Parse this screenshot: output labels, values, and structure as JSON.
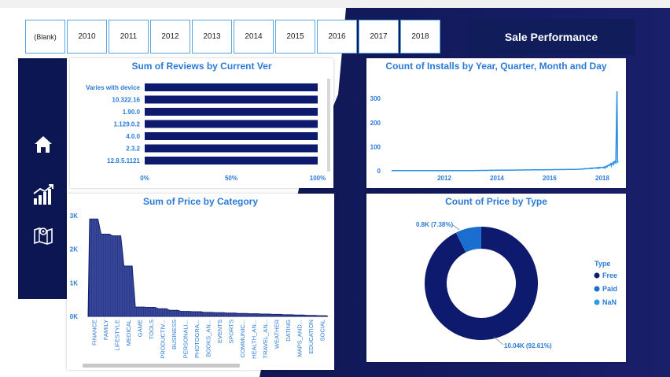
{
  "slicer": {
    "years": [
      "(Blank)",
      "2010",
      "2011",
      "2012",
      "2013",
      "2014",
      "2015",
      "2016",
      "2017",
      "2018"
    ]
  },
  "header": {
    "title": "Sale Performance"
  },
  "nav": {
    "items": [
      "home-icon",
      "analytics-icon",
      "map-icon"
    ]
  },
  "reviews_chart": {
    "title": "Sum of Reviews by Current Ver",
    "categories": [
      "Varies with device",
      "10.322.16",
      "1.90.0",
      "1.129.0.2",
      "4.0.0",
      "2.3.2",
      "12.8.5.1121"
    ],
    "values": [
      100,
      100,
      100,
      100,
      100,
      100,
      100
    ],
    "x_ticks": [
      "0%",
      "50%",
      "100%"
    ],
    "bar_color": "#0d1a6e"
  },
  "installs_chart": {
    "title": "Count of Installs by Year, Quarter, Month and Day",
    "y_ticks": [
      "300",
      "200",
      "100",
      "0"
    ],
    "x_ticks": [
      "2012",
      "2014",
      "2016",
      "2018"
    ],
    "line_color": "#2a8fe6"
  },
  "price_category_chart": {
    "title": "Sum of Price by Category",
    "y_ticks": [
      "3K",
      "2K",
      "1K",
      "0K"
    ],
    "categories": [
      "FINANCE",
      "FAMILY",
      "LIFESTYLE",
      "MEDICAL",
      "GAME",
      "TOOLS",
      "PRODUCTIV...",
      "BUSINESS",
      "PERSONALI...",
      "PHOTOGRA...",
      "BOOKS_AN...",
      "EVENTS",
      "SPORTS",
      "COMMUNIC...",
      "HEALTH_AN...",
      "TRAVEL_AN...",
      "WEATHER",
      "DATING",
      "MAPS_AND...",
      "EDUCATION",
      "SOCIAL"
    ],
    "values": [
      2900,
      2450,
      2400,
      1500,
      280,
      270,
      230,
      180,
      150,
      140,
      120,
      110,
      100,
      90,
      80,
      70,
      60,
      50,
      40,
      30,
      20
    ],
    "fill_color": "#2a3a8e"
  },
  "price_type_chart": {
    "title": "Count of Price by Type",
    "legend_title": "Type",
    "legend": [
      {
        "label": "Free",
        "color": "#0d1a6e"
      },
      {
        "label": "Paid",
        "color": "#1a6ed0"
      },
      {
        "label": "NaN",
        "color": "#2a9aec"
      }
    ],
    "slices": [
      {
        "label": "Free",
        "value": 92.61,
        "display": "10.04K (92.61%)"
      },
      {
        "label": "Paid",
        "value": 7.38,
        "display": "0.8K (7.38%)"
      },
      {
        "label": "NaN",
        "value": 0.01,
        "display": ""
      }
    ]
  },
  "chart_data": [
    {
      "type": "bar",
      "title": "Sum of Reviews by Current Ver",
      "categories": [
        "Varies with device",
        "10.322.16",
        "1.90.0",
        "1.129.0.2",
        "4.0.0",
        "2.3.2",
        "12.8.5.1121"
      ],
      "values": [
        100,
        100,
        100,
        100,
        100,
        100,
        100
      ],
      "xlabel": "",
      "ylabel": "",
      "xlim": [
        0,
        100
      ]
    },
    {
      "type": "line",
      "title": "Count of Installs by Year, Quarter, Month and Day",
      "x": [
        "2010",
        "2012",
        "2014",
        "2016",
        "2017",
        "2018"
      ],
      "values": [
        0,
        2,
        5,
        10,
        20,
        330
      ],
      "ylim": [
        0,
        330
      ]
    },
    {
      "type": "area",
      "title": "Sum of Price by Category",
      "categories": [
        "FINANCE",
        "FAMILY",
        "LIFESTYLE",
        "MEDICAL",
        "GAME",
        "TOOLS",
        "PRODUCTIV...",
        "BUSINESS",
        "PERSONALI...",
        "PHOTOGRA...",
        "BOOKS_AN...",
        "EVENTS",
        "SPORTS",
        "COMMUNIC...",
        "HEALTH_AN...",
        "TRAVEL_AN...",
        "WEATHER",
        "DATING",
        "MAPS_AND...",
        "EDUCATION",
        "SOCIAL"
      ],
      "values": [
        2900,
        2450,
        2400,
        1500,
        280,
        270,
        230,
        180,
        150,
        140,
        120,
        110,
        100,
        90,
        80,
        70,
        60,
        50,
        40,
        30,
        20
      ],
      "ylim": [
        0,
        3000
      ]
    },
    {
      "type": "pie",
      "title": "Count of Price by Type",
      "categories": [
        "Free",
        "Paid",
        "NaN"
      ],
      "values": [
        10040,
        800,
        1
      ]
    }
  ]
}
